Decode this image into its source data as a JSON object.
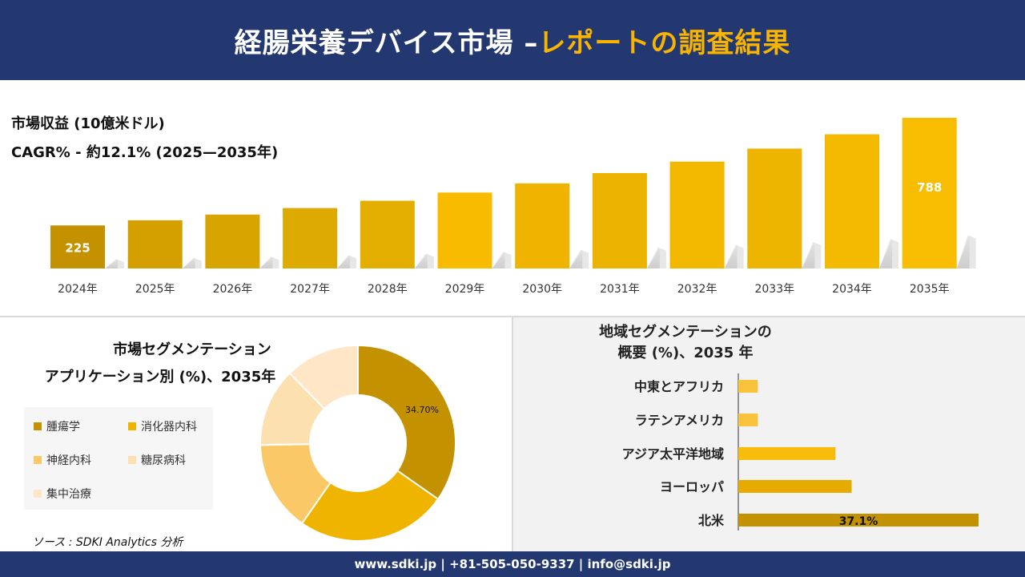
{
  "header": {
    "title_main": "経腸栄養デバイス市場 –",
    "title_accent": "レポートの調査結果"
  },
  "revenue": {
    "title": "市場収益 (10億米ドル)",
    "cagr": "CAGR% - 約12.1% (2025—2035年)"
  },
  "segment": {
    "title_line1": "市場セグメンテーション",
    "title_line2": "アプリケーション別 (%)、2035年"
  },
  "region": {
    "title_line1": "地域セグメンテーションの",
    "title_line2": "概要 (%)、2035 年"
  },
  "source": "ソース : SDKI Analytics 分析",
  "footer": "www.sdki.jp | +81-505-050-9337 | info@sdki.jp",
  "colors": {
    "navy": "#233870",
    "accent": "#f8b400"
  },
  "chart_data": [
    {
      "type": "bar",
      "categories": [
        "2024年",
        "2025年",
        "2026年",
        "2027年",
        "2028年",
        "2029年",
        "2030年",
        "2031年",
        "2032年",
        "2033年",
        "2034年",
        "2035年"
      ],
      "values": [
        225,
        252,
        282,
        316,
        354,
        397,
        445,
        499,
        559,
        627,
        702,
        788
      ],
      "data_labels": {
        "0": "225",
        "11": "788"
      },
      "colors": [
        "#c49200",
        "#d4a000",
        "#d8a400",
        "#dcaa00",
        "#e4ae00",
        "#f8bb00",
        "#f0b400",
        "#ecb200",
        "#f2b800",
        "#eeb500",
        "#f4ba00",
        "#f8bc00"
      ],
      "title": "市場収益 (10億米ドル)",
      "xlabel": "",
      "ylabel": ""
    },
    {
      "type": "pie",
      "categories": [
        "腫瘍学",
        "消化器内科",
        "神経内科",
        "糖尿病科",
        "集中治療"
      ],
      "values": [
        34.7,
        25.0,
        15.0,
        13.0,
        12.3
      ],
      "data_labels": {
        "0": "34.70%"
      },
      "colors": [
        "#c49200",
        "#efb400",
        "#fbc868",
        "#fde0b0",
        "#fee6c6"
      ],
      "title": "",
      "legend_position": "left"
    },
    {
      "type": "bar",
      "orientation": "horizontal",
      "categories": [
        "中東とアフリカ",
        "ラテンアメリカ",
        "アジア太平洋地域",
        "ヨーロッパ",
        "北米"
      ],
      "values": [
        3.0,
        3.0,
        15.0,
        17.5,
        37.1
      ],
      "data_labels": {
        "4": "37.1%"
      },
      "colors": [
        "#f8c23a",
        "#f8c23a",
        "#f8bd0c",
        "#e5ab00",
        "#c49200"
      ],
      "title": "",
      "xlabel": "",
      "ylabel": ""
    }
  ]
}
